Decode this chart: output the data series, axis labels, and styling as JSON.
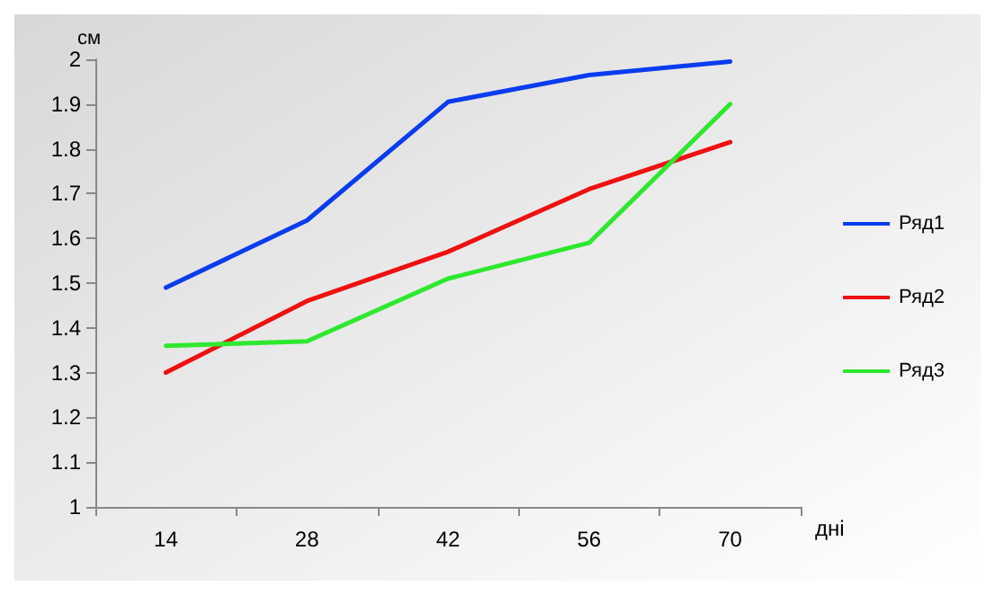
{
  "chart_data": {
    "type": "line",
    "xlabel": "дні",
    "ylabel": "см",
    "categories": [
      "14",
      "28",
      "42",
      "56",
      "70"
    ],
    "series": [
      {
        "name": "Ряд1",
        "color": "#0a3cf0",
        "values": [
          1.49,
          1.64,
          1.905,
          1.965,
          1.995
        ]
      },
      {
        "name": "Ряд2",
        "color": "#f01010",
        "values": [
          1.3,
          1.46,
          1.57,
          1.71,
          1.815
        ]
      },
      {
        "name": "Ряд3",
        "color": "#2ee82e",
        "values": [
          1.36,
          1.37,
          1.51,
          1.59,
          1.9
        ]
      }
    ],
    "ylim": [
      1,
      2
    ],
    "yticks": [
      1,
      1.1,
      1.2,
      1.3,
      1.4,
      1.5,
      1.6,
      1.7,
      1.8,
      1.9,
      2
    ],
    "grid": false,
    "legend": "right",
    "marker": "none",
    "line_style": "solid"
  }
}
